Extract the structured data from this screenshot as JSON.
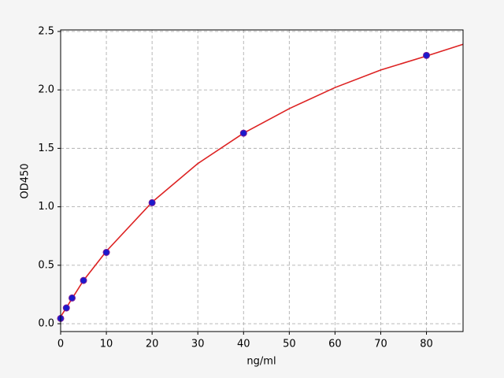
{
  "chart_data": {
    "type": "scatter",
    "xlabel": "ng/ml",
    "ylabel": "OD450",
    "xlim": [
      0,
      88
    ],
    "ylim": [
      -0.067,
      2.513
    ],
    "xticks": [
      0,
      10,
      20,
      30,
      40,
      50,
      60,
      70,
      80
    ],
    "yticks": [
      {
        "value": 0,
        "label": "0.0"
      },
      0.5,
      {
        "value": 1,
        "label": "1.0"
      },
      1.5,
      {
        "value": 2,
        "label": "2.0"
      },
      2.5
    ],
    "grid": true,
    "series": [
      {
        "type": "line",
        "color": "#dd2222",
        "x": [
          0,
          5,
          10,
          20,
          30,
          40,
          50,
          60,
          70,
          80,
          88
        ],
        "values": [
          0.06,
          0.37,
          0.62,
          1.04,
          1.37,
          1.63,
          1.84,
          2.02,
          2.17,
          2.29,
          2.39
        ]
      },
      {
        "type": "scatter",
        "color": "#1a1acc",
        "x": [
          0,
          1.25,
          2.5,
          5,
          10,
          20,
          40,
          80
        ],
        "values": [
          0.045,
          0.135,
          0.22,
          0.37,
          0.61,
          1.035,
          1.63,
          2.295
        ]
      }
    ]
  }
}
